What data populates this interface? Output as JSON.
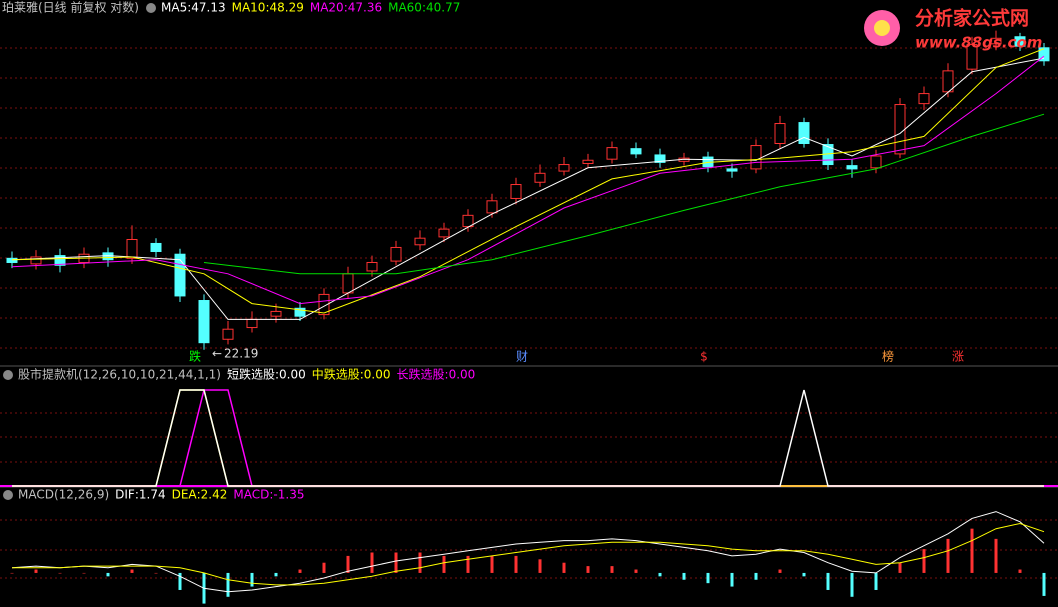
{
  "chart_data": [
    {
      "type": "candlestick",
      "title": "珀莱雅(日线 前复权 对数)",
      "log_scale": true,
      "ylim": [
        21.5,
        52
      ],
      "up_color": "#ff3232",
      "down_color": "#54ffff",
      "open": [
        28.1,
        27.7,
        28.3,
        27.8,
        28.5,
        28.1,
        29.2,
        28.4,
        25.2,
        22.8,
        23.5,
        24.2,
        24.7,
        24.3,
        25.7,
        27.2,
        27.9,
        29.1,
        29.7,
        30.5,
        31.6,
        32.8,
        34.2,
        35.2,
        35.9,
        36.3,
        37.3,
        36.7,
        36.1,
        36.5,
        35.4,
        35.4,
        37.8,
        39.9,
        37.7,
        35.7,
        35.5,
        36.8,
        41.9,
        43.2,
        45.8,
        48.9,
        49.8,
        48.4
      ],
      "high": [
        28.6,
        28.7,
        28.8,
        28.9,
        28.9,
        30.6,
        29.6,
        28.8,
        25.6,
        23.9,
        24.5,
        25.0,
        25.1,
        26.0,
        27.5,
        28.3,
        29.4,
        30.2,
        30.8,
        31.9,
        33.2,
        34.6,
        35.8,
        36.5,
        36.8,
        38.0,
        37.9,
        37.3,
        36.9,
        37.0,
        35.9,
        38.2,
        40.6,
        40.4,
        38.3,
        36.3,
        37.2,
        42.5,
        43.8,
        46.5,
        49.8,
        50.6,
        50.3,
        49.0
      ],
      "low": [
        27.4,
        27.3,
        27.1,
        27.4,
        27.5,
        27.7,
        28.2,
        25.1,
        22.19,
        22.5,
        23.2,
        23.8,
        23.9,
        24.0,
        25.3,
        26.8,
        27.6,
        28.7,
        29.3,
        30.1,
        31.2,
        32.3,
        33.8,
        34.8,
        35.5,
        35.9,
        36.4,
        35.5,
        35.7,
        35.1,
        34.6,
        35.0,
        37.3,
        37.4,
        35.3,
        34.6,
        35.0,
        36.4,
        41.2,
        42.6,
        45.2,
        48.1,
        48.0,
        46.2
      ],
      "close": [
        27.8,
        28.2,
        27.6,
        28.4,
        28.0,
        29.5,
        28.6,
        25.5,
        22.6,
        23.4,
        24.0,
        24.5,
        24.2,
        25.6,
        27.0,
        27.8,
        28.9,
        29.6,
        30.3,
        31.4,
        32.6,
        34.0,
        35.0,
        35.8,
        36.2,
        37.4,
        36.8,
        36.0,
        36.4,
        35.6,
        35.2,
        37.6,
        39.8,
        37.8,
        35.8,
        35.4,
        36.6,
        41.8,
        43.0,
        45.6,
        48.8,
        49.6,
        48.6,
        46.8
      ],
      "series": [
        {
          "name": "MA5",
          "color": "#ffffff",
          "x": [
            0,
            4,
            7,
            9,
            12,
            16,
            20,
            24,
            28,
            31,
            33,
            35,
            37,
            40,
            43
          ],
          "values": [
            28.0,
            28.3,
            28.0,
            24.0,
            24.0,
            27.5,
            31.5,
            35.5,
            36.3,
            36.2,
            38.4,
            36.6,
            38.8,
            45.5,
            47.13
          ]
        },
        {
          "name": "MA10",
          "color": "#ffff00",
          "x": [
            0,
            5,
            8,
            10,
            13,
            17,
            21,
            25,
            29,
            32,
            35,
            38,
            41,
            43
          ],
          "values": [
            28.0,
            28.2,
            27.0,
            25.0,
            24.4,
            26.8,
            30.5,
            34.5,
            36.0,
            36.4,
            37.0,
            38.5,
            46.0,
            48.29
          ]
        },
        {
          "name": "MA20",
          "color": "#ff00ff",
          "x": [
            0,
            6,
            9,
            12,
            15,
            19,
            23,
            27,
            31,
            35,
            38,
            41,
            43
          ],
          "values": [
            27.5,
            28.0,
            27.0,
            25.0,
            25.5,
            28.0,
            32.0,
            35.0,
            36.0,
            36.3,
            37.6,
            43.0,
            47.36
          ]
        },
        {
          "name": "MA60",
          "color": "#00e000",
          "x": [
            8,
            12,
            16,
            20,
            24,
            28,
            32,
            36,
            40,
            43
          ],
          "values": [
            27.8,
            27.0,
            27.0,
            28.0,
            29.8,
            31.8,
            33.8,
            35.4,
            38.5,
            40.77
          ]
        }
      ],
      "events": [
        {
          "text": "跌",
          "color": "#00ff00"
        },
        {
          "text": "财",
          "color": "#5a8cff"
        },
        {
          "text": "$",
          "color": "#ff3232"
        },
        {
          "text": "榜",
          "color": "#ff9a3c"
        },
        {
          "text": "涨",
          "color": "#ff3232"
        }
      ]
    },
    {
      "type": "line",
      "title": "股市提款机(12,26,10,10,21,44,1,1)",
      "ylim": [
        0,
        1
      ],
      "baseline_color": "#ff00ff",
      "series": [
        {
          "name": "短跌选股",
          "color": "#ffffff",
          "value_label": "0.00",
          "values": [
            0,
            0,
            0,
            0,
            0,
            0,
            0,
            1,
            1,
            0,
            0,
            0,
            0,
            0,
            0,
            0,
            0,
            0,
            0,
            0,
            0,
            0,
            0,
            0,
            0,
            0,
            0,
            0,
            0,
            0,
            0,
            0,
            0,
            1,
            0,
            0,
            0,
            0,
            0,
            0,
            0,
            0,
            0,
            0
          ]
        },
        {
          "name": "中跌选股",
          "color": "#ffff00",
          "value_label": "0.00",
          "values": [
            0,
            0,
            0,
            0,
            0,
            0,
            0,
            1,
            1,
            0,
            0,
            0,
            0,
            0,
            0,
            0,
            0,
            0,
            0,
            0,
            0,
            0,
            0,
            0,
            0,
            0,
            0,
            0,
            0,
            0,
            0,
            0,
            0,
            0,
            0,
            0,
            0,
            0,
            0,
            0,
            0,
            0,
            0,
            0
          ]
        },
        {
          "name": "长跌选股",
          "color": "#ff00ff",
          "value_label": "0.00",
          "values": [
            0,
            0,
            0,
            0,
            0,
            0,
            0,
            0,
            1,
            1,
            0,
            0,
            0,
            0,
            0,
            0,
            0,
            0,
            0,
            0,
            0,
            0,
            0,
            0,
            0,
            0,
            0,
            0,
            0,
            0,
            0,
            0,
            0,
            0,
            0,
            0,
            0,
            0,
            0,
            0,
            0,
            0,
            0,
            0
          ]
        }
      ]
    },
    {
      "type": "macd",
      "title": "MACD(12,26,9)",
      "ylim": [
        -2,
        4.4
      ],
      "up_color": "#ff3232",
      "down_color": "#54ffff",
      "series": [
        {
          "name": "DIF",
          "color": "#ffffff",
          "values": [
            0.3,
            0.4,
            0.3,
            0.4,
            0.3,
            0.5,
            0.4,
            -0.2,
            -0.9,
            -1.1,
            -1.0,
            -0.8,
            -0.6,
            -0.3,
            0.1,
            0.4,
            0.7,
            0.9,
            1.1,
            1.3,
            1.5,
            1.7,
            1.8,
            1.9,
            1.9,
            2.0,
            1.9,
            1.7,
            1.5,
            1.3,
            1.0,
            1.1,
            1.4,
            1.2,
            0.6,
            0.1,
            0.0,
            0.9,
            1.6,
            2.3,
            3.2,
            3.6,
            3.0,
            1.74
          ]
        },
        {
          "name": "DEA",
          "color": "#ffff00",
          "values": [
            0.3,
            0.3,
            0.3,
            0.4,
            0.4,
            0.4,
            0.4,
            0.3,
            0.0,
            -0.4,
            -0.6,
            -0.7,
            -0.7,
            -0.6,
            -0.4,
            -0.2,
            0.1,
            0.3,
            0.6,
            0.8,
            1.0,
            1.2,
            1.4,
            1.6,
            1.7,
            1.8,
            1.8,
            1.8,
            1.7,
            1.6,
            1.4,
            1.3,
            1.3,
            1.3,
            1.1,
            0.8,
            0.5,
            0.6,
            0.9,
            1.3,
            1.9,
            2.6,
            2.9,
            2.42
          ]
        },
        {
          "name": "MACD",
          "color": "#ff00ff",
          "values": [
            0,
            0.2,
            0,
            0,
            -0.2,
            0.2,
            0,
            -1.0,
            -1.8,
            -1.4,
            -0.8,
            -0.2,
            0.2,
            0.6,
            1.0,
            1.2,
            1.2,
            1.2,
            1.0,
            1.0,
            1.0,
            1.0,
            0.8,
            0.6,
            0.4,
            0.4,
            0.2,
            -0.2,
            -0.4,
            -0.6,
            -0.8,
            -0.4,
            0.2,
            -0.2,
            -1.0,
            -1.4,
            -1.0,
            0.6,
            1.4,
            2.0,
            2.6,
            2.0,
            0.2,
            -1.35
          ]
        }
      ]
    }
  ],
  "watermark": {
    "title": "分析家公式网",
    "url": "www.88gs.com"
  }
}
